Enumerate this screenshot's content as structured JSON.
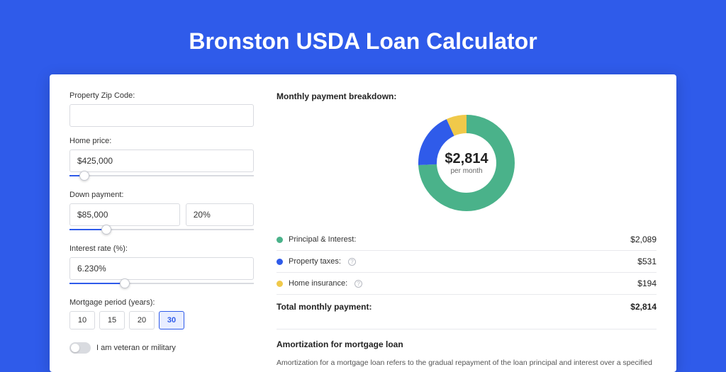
{
  "page": {
    "title": "Bronston USDA Loan Calculator",
    "background_color": "#2f5bea",
    "card_bg": "#ffffff"
  },
  "form": {
    "zip": {
      "label": "Property Zip Code:",
      "value": ""
    },
    "home_price": {
      "label": "Home price:",
      "value": "$425,000",
      "slider_pct": 8
    },
    "down_payment": {
      "label": "Down payment:",
      "value": "$85,000",
      "pct_value": "20%",
      "slider_pct": 20
    },
    "interest_rate": {
      "label": "Interest rate (%):",
      "value": "6.230%",
      "slider_pct": 30
    },
    "mortgage_period": {
      "label": "Mortgage period (years):",
      "options": [
        "10",
        "15",
        "20",
        "30"
      ],
      "selected_index": 3
    },
    "veteran": {
      "label": "I am veteran or military",
      "checked": false
    }
  },
  "breakdown": {
    "title": "Monthly payment breakdown:",
    "center_amount": "$2,814",
    "center_sub": "per month",
    "donut": {
      "radius": 55,
      "stroke_width": 26,
      "segments": [
        {
          "key": "principal_interest",
          "color": "#4ab28a",
          "fraction": 0.742
        },
        {
          "key": "property_taxes",
          "color": "#2f5bea",
          "fraction": 0.189
        },
        {
          "key": "home_insurance",
          "color": "#f0c94a",
          "fraction": 0.069
        }
      ]
    },
    "items": [
      {
        "label": "Principal & Interest:",
        "value": "$2,089",
        "color": "#4ab28a",
        "info": false
      },
      {
        "label": "Property taxes:",
        "value": "$531",
        "color": "#2f5bea",
        "info": true
      },
      {
        "label": "Home insurance:",
        "value": "$194",
        "color": "#f0c94a",
        "info": true
      }
    ],
    "total": {
      "label": "Total monthly payment:",
      "value": "$2,814"
    }
  },
  "amortization": {
    "title": "Amortization for mortgage loan",
    "text": "Amortization for a mortgage loan refers to the gradual repayment of the loan principal and interest over a specified"
  }
}
